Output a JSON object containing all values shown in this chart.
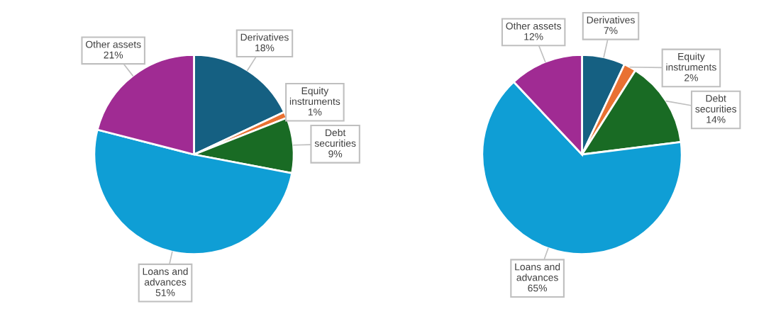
{
  "chart_data": [
    {
      "type": "pie",
      "categories": [
        "Derivatives",
        "Equity instruments",
        "Debt securities",
        "Loans and advances",
        "Other assets"
      ],
      "values": [
        18,
        1,
        9,
        51,
        21
      ],
      "colors": [
        "#156082",
        "#e97132",
        "#196b24",
        "#0f9ed5",
        "#a02b93"
      ],
      "value_labels": [
        "18%",
        "1%",
        "9%",
        "51%",
        "21%"
      ]
    },
    {
      "type": "pie",
      "categories": [
        "Derivatives",
        "Equity instruments",
        "Debt securities",
        "Loans and advances",
        "Other assets"
      ],
      "values": [
        7,
        2,
        14,
        65,
        12
      ],
      "colors": [
        "#156082",
        "#e97132",
        "#196b24",
        "#0f9ed5",
        "#a02b93"
      ],
      "value_labels": [
        "7%",
        "2%",
        "14%",
        "65%",
        "12%"
      ]
    }
  ]
}
